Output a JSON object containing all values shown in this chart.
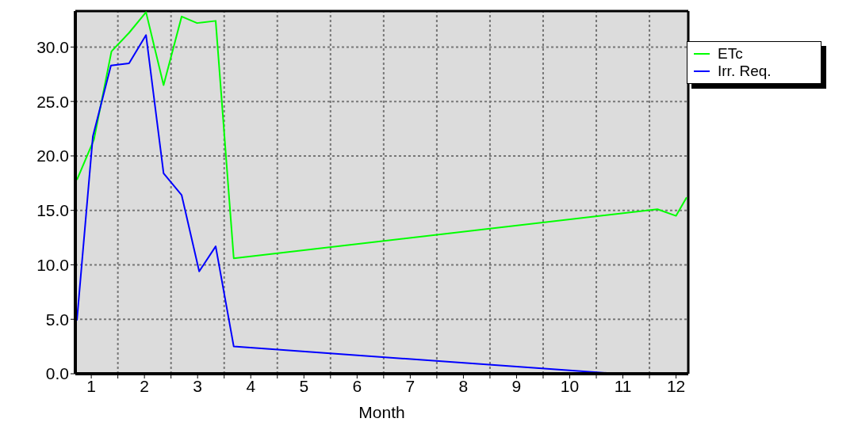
{
  "chart_data": {
    "type": "line",
    "xlabel": "Month",
    "xlim": [
      0.7,
      12.23
    ],
    "xticks": [
      1,
      {
        "value": 1.5,
        "label": null
      },
      2,
      {
        "value": 2.5,
        "label": null
      },
      3,
      {
        "value": 3.5,
        "label": null
      },
      4,
      {
        "value": 4.5,
        "label": null
      },
      5,
      {
        "value": 5.5,
        "label": null
      },
      6,
      {
        "value": 6.5,
        "label": null
      },
      7,
      {
        "value": 7.5,
        "label": null
      },
      8,
      {
        "value": 8.5,
        "label": null
      },
      9,
      {
        "value": 9.5,
        "label": null
      },
      10,
      {
        "value": 10.5,
        "label": null
      },
      11,
      {
        "value": 11.5,
        "label": null
      },
      12
    ],
    "ylim": [
      0,
      33.3
    ],
    "yticks": [
      {
        "value": 0,
        "label": "0.0"
      },
      {
        "value": 5,
        "label": "5.0"
      },
      {
        "value": 10,
        "label": "10.0"
      },
      {
        "value": 15,
        "label": "15.0"
      },
      {
        "value": 20,
        "label": "20.0"
      },
      {
        "value": 25,
        "label": "25.0"
      },
      {
        "value": 30,
        "label": "30.0"
      }
    ],
    "grid": true,
    "legend": "top right",
    "marker": "none",
    "line_style": "solid",
    "series": [
      {
        "name": "ETc",
        "color": "#00ff00",
        "x": [
          0.73,
          1.05,
          1.38,
          1.71,
          2.03,
          2.36,
          2.7,
          2.99,
          3.34,
          3.68,
          11.65,
          12.0,
          12.2
        ],
        "values": [
          17.8,
          21.5,
          29.6,
          31.3,
          33.2,
          26.5,
          32.8,
          32.2,
          32.4,
          10.6,
          15.1,
          14.5,
          16.2
        ]
      },
      {
        "name": "Irr. Req.",
        "color": "#0000ff",
        "x": [
          0.73,
          1.03,
          1.37,
          1.71,
          2.03,
          2.36,
          2.7,
          3.03,
          3.34,
          3.68,
          10.9
        ],
        "values": [
          4.9,
          21.8,
          28.3,
          28.5,
          31.1,
          18.4,
          16.4,
          9.4,
          11.7,
          2.5,
          0
        ]
      }
    ]
  }
}
